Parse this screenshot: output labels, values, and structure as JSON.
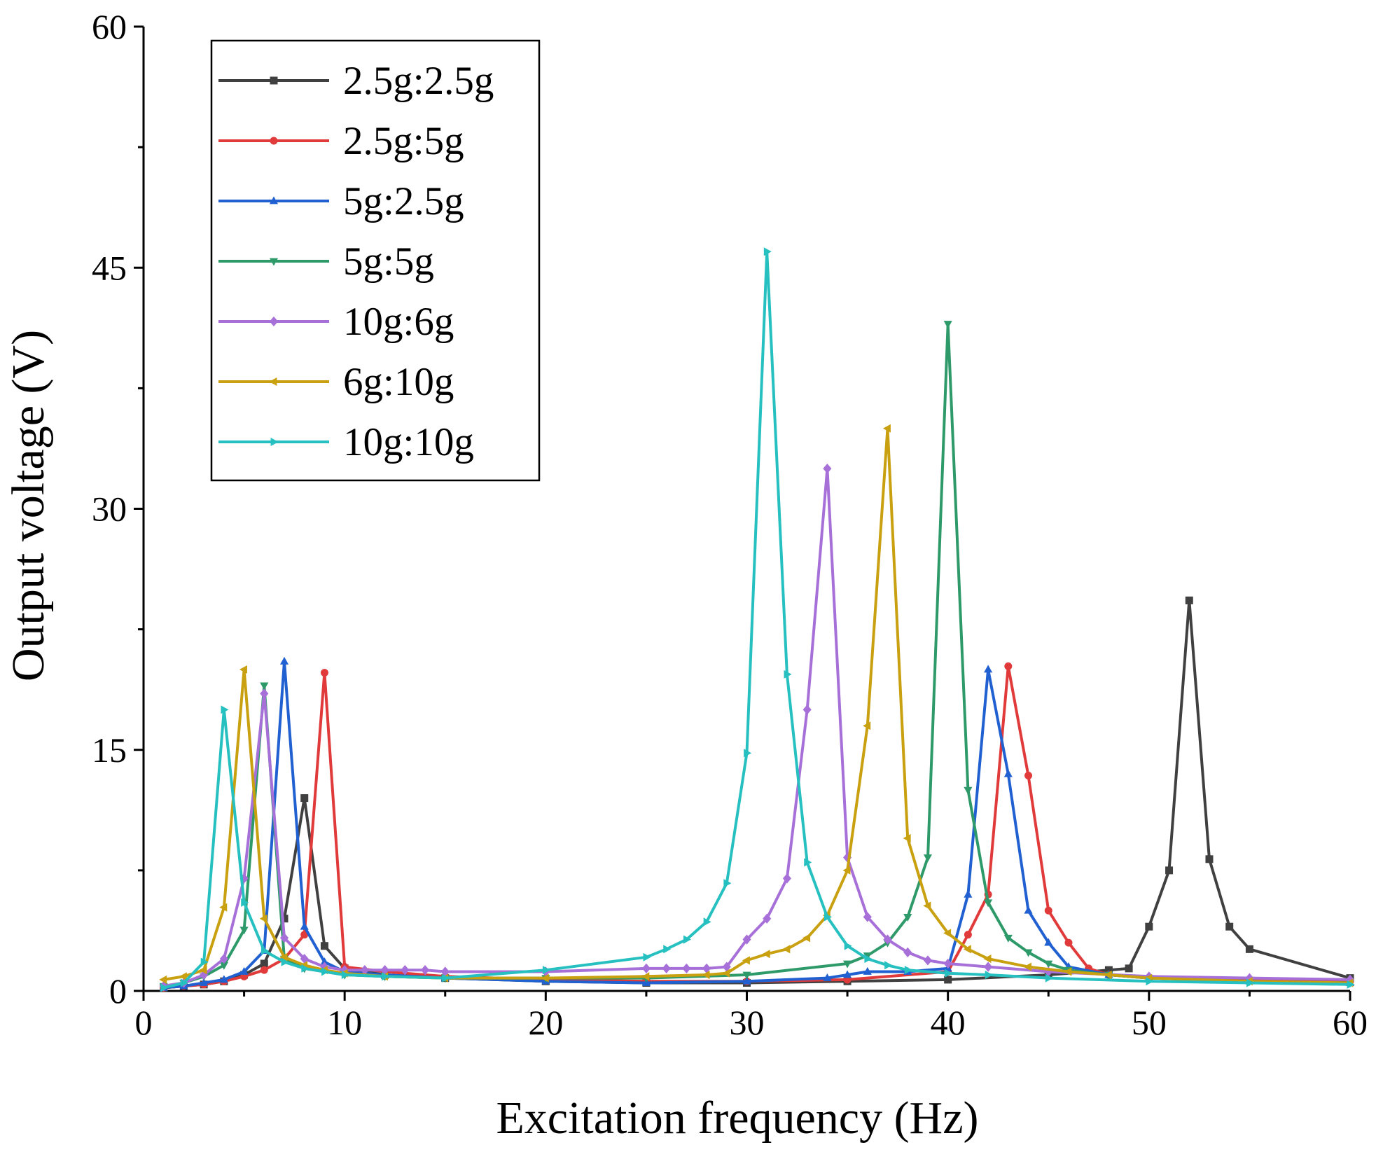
{
  "chart_data": {
    "type": "line",
    "title": "",
    "xlabel": "Excitation frequency (Hz)",
    "ylabel": "Output voltage (V)",
    "xlim": [
      0,
      60
    ],
    "ylim": [
      0,
      60
    ],
    "xticks": [
      0,
      10,
      20,
      30,
      40,
      50,
      60
    ],
    "yticks": [
      0,
      15,
      30,
      45,
      60
    ],
    "legend_position": "top-left",
    "grid": false,
    "series": [
      {
        "name": "2.5g:2.5g",
        "color": "#404040",
        "marker": "square",
        "x": [
          1,
          2,
          3,
          4,
          5,
          6,
          7,
          8,
          9,
          10,
          12,
          15,
          20,
          25,
          30,
          35,
          40,
          45,
          48,
          49,
          50,
          51,
          52,
          53,
          54,
          55,
          60
        ],
        "y": [
          0.2,
          0.3,
          0.4,
          0.6,
          1.0,
          1.7,
          4.5,
          12.0,
          2.8,
          1.4,
          1.0,
          0.8,
          0.6,
          0.5,
          0.5,
          0.6,
          0.7,
          1.0,
          1.3,
          1.4,
          4.0,
          7.5,
          24.3,
          8.2,
          4.0,
          2.6,
          0.8
        ]
      },
      {
        "name": "2.5g:5g",
        "color": "#e03a3a",
        "marker": "circle",
        "x": [
          1,
          2,
          3,
          4,
          5,
          6,
          7,
          8,
          9,
          10,
          12,
          15,
          20,
          25,
          30,
          35,
          40,
          41,
          42,
          43,
          44,
          45,
          46,
          47,
          48,
          50,
          55,
          60
        ],
        "y": [
          0.2,
          0.3,
          0.4,
          0.6,
          0.9,
          1.3,
          2.0,
          3.5,
          19.8,
          1.5,
          1.2,
          0.9,
          0.7,
          0.6,
          0.6,
          0.7,
          1.2,
          3.5,
          6.0,
          20.2,
          13.4,
          5.0,
          3.0,
          1.4,
          1.0,
          0.8,
          0.7,
          0.6
        ]
      },
      {
        "name": "5g:2.5g",
        "color": "#2060d0",
        "marker": "triangle-up",
        "x": [
          1,
          2,
          3,
          4,
          5,
          6,
          7,
          8,
          9,
          10,
          12,
          15,
          20,
          25,
          30,
          34,
          35,
          36,
          38,
          40,
          41,
          42,
          43,
          44,
          45,
          46,
          48,
          50,
          55,
          60
        ],
        "y": [
          0.2,
          0.3,
          0.5,
          0.7,
          1.2,
          2.5,
          20.5,
          4.0,
          1.8,
          1.2,
          1.0,
          0.8,
          0.6,
          0.5,
          0.6,
          0.8,
          1.0,
          1.2,
          1.2,
          1.4,
          6.0,
          20.0,
          13.5,
          5.0,
          3.0,
          1.5,
          1.0,
          0.8,
          0.6,
          0.5
        ]
      },
      {
        "name": "5g:5g",
        "color": "#2e9a6a",
        "marker": "triangle-down",
        "x": [
          1,
          2,
          3,
          4,
          5,
          6,
          7,
          8,
          10,
          12,
          15,
          20,
          25,
          30,
          35,
          36,
          37,
          38,
          39,
          40,
          41,
          42,
          43,
          44,
          45,
          46,
          48,
          50,
          55,
          60
        ],
        "y": [
          0.3,
          0.5,
          0.9,
          1.6,
          3.8,
          19.0,
          2.0,
          1.4,
          1.0,
          0.9,
          0.8,
          0.8,
          0.8,
          1.0,
          1.7,
          2.2,
          3.0,
          4.6,
          8.3,
          41.5,
          12.5,
          5.5,
          3.3,
          2.4,
          1.7,
          1.3,
          1.0,
          0.8,
          0.6,
          0.5
        ]
      },
      {
        "name": "10g:6g",
        "color": "#a770d8",
        "marker": "diamond",
        "x": [
          1,
          2,
          3,
          4,
          5,
          6,
          7,
          8,
          9,
          10,
          11,
          12,
          13,
          14,
          15,
          20,
          25,
          26,
          27,
          28,
          29,
          30,
          31,
          32,
          33,
          34,
          35,
          36,
          37,
          38,
          39,
          40,
          42,
          45,
          50,
          55,
          60
        ],
        "y": [
          0.3,
          0.5,
          1.0,
          2.0,
          7.0,
          18.5,
          3.3,
          2.0,
          1.5,
          1.3,
          1.3,
          1.3,
          1.3,
          1.3,
          1.2,
          1.2,
          1.4,
          1.4,
          1.4,
          1.4,
          1.5,
          3.2,
          4.5,
          7.0,
          17.5,
          32.5,
          8.3,
          4.6,
          3.2,
          2.4,
          1.9,
          1.7,
          1.5,
          1.2,
          0.9,
          0.8,
          0.7
        ]
      },
      {
        "name": "6g:10g",
        "color": "#c8a010",
        "marker": "triangle-left",
        "x": [
          1,
          2,
          3,
          4,
          5,
          6,
          7,
          8,
          9,
          10,
          12,
          15,
          20,
          25,
          28,
          29,
          30,
          31,
          32,
          33,
          34,
          35,
          36,
          37,
          38,
          39,
          40,
          41,
          42,
          44,
          46,
          48,
          50,
          55,
          60
        ],
        "y": [
          0.7,
          0.9,
          1.3,
          5.2,
          20.0,
          4.5,
          2.1,
          1.6,
          1.3,
          1.1,
          0.9,
          0.8,
          0.8,
          0.9,
          1.0,
          1.1,
          1.9,
          2.3,
          2.6,
          3.3,
          4.7,
          7.5,
          16.5,
          35.0,
          9.5,
          5.3,
          3.6,
          2.6,
          2.0,
          1.5,
          1.2,
          1.0,
          0.8,
          0.6,
          0.5
        ]
      },
      {
        "name": "10g:10g",
        "color": "#27c0c0",
        "marker": "triangle-right",
        "x": [
          1,
          2,
          3,
          4,
          5,
          6,
          7,
          8,
          9,
          10,
          12,
          15,
          20,
          25,
          26,
          27,
          28,
          29,
          30,
          31,
          32,
          33,
          34,
          35,
          36,
          37,
          38,
          40,
          42,
          45,
          50,
          55,
          60
        ],
        "y": [
          0.2,
          0.5,
          1.8,
          17.5,
          5.5,
          2.5,
          1.8,
          1.4,
          1.2,
          1.0,
          0.9,
          0.8,
          1.3,
          2.1,
          2.6,
          3.2,
          4.3,
          6.7,
          14.8,
          46.0,
          19.7,
          8.0,
          4.6,
          2.8,
          2.0,
          1.6,
          1.3,
          1.1,
          1.0,
          0.8,
          0.6,
          0.5,
          0.4
        ]
      }
    ]
  }
}
